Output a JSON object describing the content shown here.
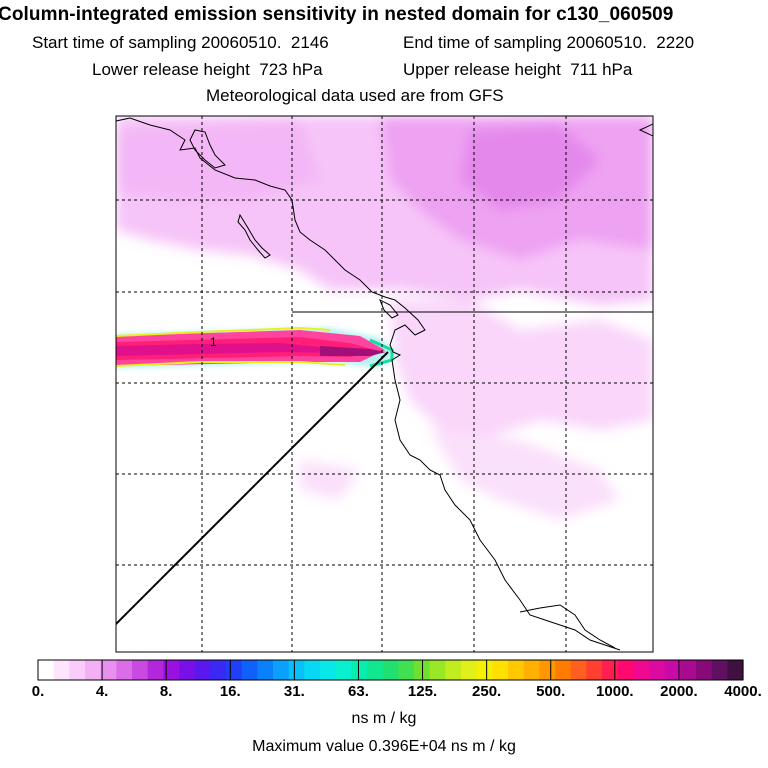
{
  "header": {
    "title": "Column-integrated emission sensitivity in nested domain for c130_060509",
    "start_label": "Start time of sampling 20060510.  2146",
    "end_label": "End time of sampling 20060510.  2220",
    "lower_label": "Lower release height  723 hPa",
    "upper_label": "Upper release height  711 hPa",
    "met_label": "Meteorological data used are from GFS"
  },
  "map": {
    "release_marker": "1",
    "release_location": "Pacific Northwest coast"
  },
  "colorbar": {
    "labels": [
      "0.",
      "4.",
      "8.",
      "16.",
      "31.",
      "63.",
      "125.",
      "250.",
      "500.",
      "1000.",
      "2000.",
      "4000."
    ],
    "colors": [
      "#ffffff",
      "#fde6fd",
      "#f9ccfa",
      "#f3b0f5",
      "#e890ef",
      "#db6ee8",
      "#c94ae0",
      "#b226dc",
      "#9a10e0",
      "#7a10e8",
      "#5a18ee",
      "#3a28f4",
      "#2040f8",
      "#1060fa",
      "#0a80fb",
      "#0aa0fb",
      "#0ac0f8",
      "#08d8f2",
      "#08e8e8",
      "#08f0d0",
      "#08ecb0",
      "#10e890",
      "#20e070",
      "#40e050",
      "#70e030",
      "#98e828",
      "#c0ec20",
      "#e0f018",
      "#f4f000",
      "#ffe000",
      "#ffc800",
      "#ffb000",
      "#ff9800",
      "#ff7c00",
      "#ff6020",
      "#ff4030",
      "#ff2050",
      "#ff0870",
      "#f00890",
      "#dc0aa0",
      "#c80aa8",
      "#a80a90",
      "#880a78",
      "#601060",
      "#401040"
    ],
    "units": "ns m / kg"
  },
  "footer": {
    "max_value": "Maximum value  0.396E+04 ns m / kg"
  }
}
